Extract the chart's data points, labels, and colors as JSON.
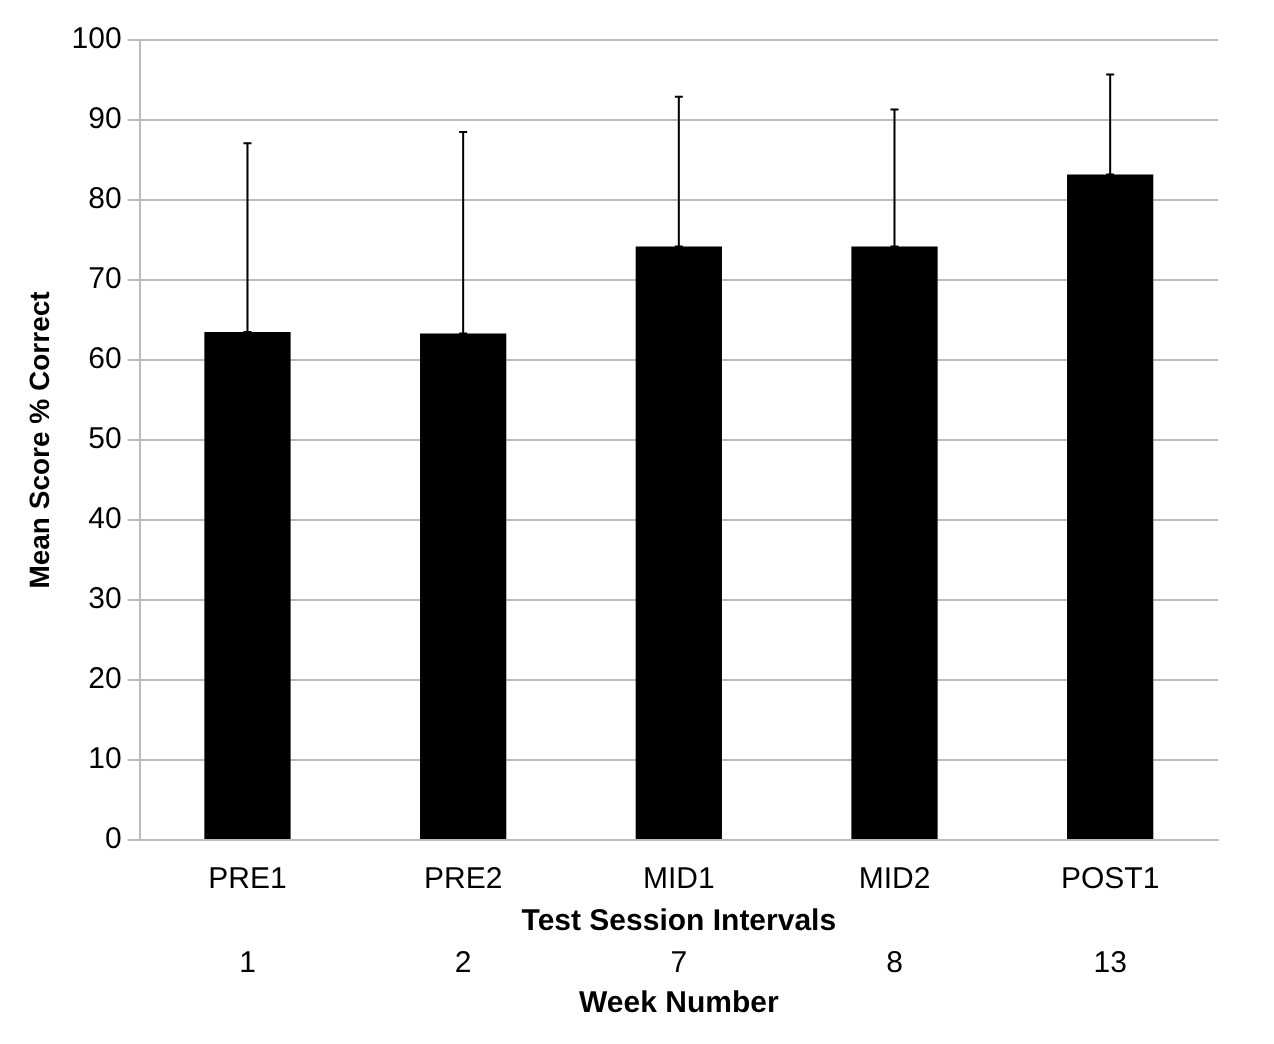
{
  "chart_data": {
    "type": "bar",
    "xlabel": "Test Session Intervals",
    "ylabel": "Mean Score % Correct",
    "categories": [
      "PRE1",
      "PRE2",
      "MID1",
      "MID2",
      "POST1"
    ],
    "values": [
      63.5,
      63.3,
      74.2,
      74.2,
      83.2
    ],
    "color": "#000000",
    "errors": [
      [
        63.5,
        87.1
      ],
      [
        63.3,
        88.5
      ],
      [
        74.2,
        92.9
      ],
      [
        74.2,
        91.3
      ],
      [
        83.2,
        95.7
      ]
    ],
    "ylim": [
      0,
      100
    ],
    "yticks": [
      0,
      10,
      20,
      30,
      40,
      50,
      60,
      70,
      80,
      90,
      100
    ],
    "grid": "y",
    "annotations": [
      "1",
      "2",
      "7",
      "8",
      "13",
      "Week Number"
    ]
  }
}
